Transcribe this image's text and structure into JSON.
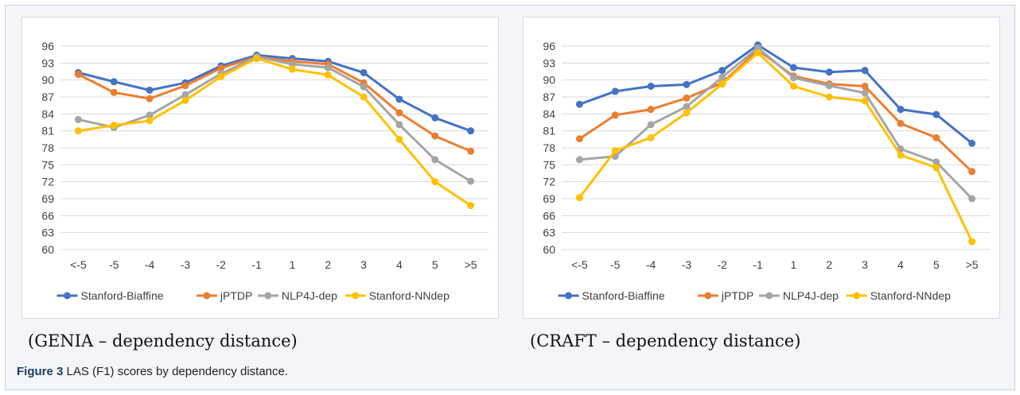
{
  "figure": {
    "label": "Figure 3",
    "caption_text": "LAS (F1) scores by dependency distance."
  },
  "colors": {
    "Stanford-Biaffine": "#4472c4",
    "jPTDP": "#ed7d31",
    "NLP4J-dep": "#a5a5a5",
    "Stanford-NNdep": "#ffc000"
  },
  "chart_data": [
    {
      "type": "line",
      "subcaption": "(GENIA – dependency distance)",
      "categories": [
        "<-5",
        "-5",
        "-4",
        "-3",
        "-2",
        "-1",
        "1",
        "2",
        "3",
        "4",
        "5",
        ">5"
      ],
      "ylim": [
        60,
        96
      ],
      "yticks": [
        "60",
        "63",
        "66",
        "69",
        "72",
        "75",
        "78",
        "81",
        "84",
        "87",
        "90",
        "93",
        "96"
      ],
      "grid": true,
      "legend_position": "bottom",
      "series": [
        {
          "name": "Stanford-Biaffine",
          "values": [
            91.3,
            89.7,
            88.2,
            89.5,
            92.5,
            94.4,
            93.8,
            93.3,
            91.3,
            86.6,
            83.3,
            81.0
          ]
        },
        {
          "name": "jPTDP",
          "values": [
            91.0,
            87.8,
            86.7,
            89.0,
            92.1,
            94.1,
            93.3,
            92.8,
            89.5,
            84.2,
            80.1,
            77.4
          ]
        },
        {
          "name": "NLP4J-dep",
          "values": [
            83.0,
            81.6,
            83.8,
            87.4,
            91.1,
            94.1,
            92.8,
            92.2,
            88.8,
            82.1,
            75.9,
            72.1
          ]
        },
        {
          "name": "Stanford-NNdep",
          "values": [
            81.0,
            82.0,
            82.8,
            86.4,
            90.6,
            93.8,
            91.9,
            90.9,
            87.0,
            79.5,
            72.0,
            67.8
          ]
        }
      ]
    },
    {
      "type": "line",
      "subcaption": "(CRAFT – dependency distance)",
      "categories": [
        "<-5",
        "-5",
        "-4",
        "-3",
        "-2",
        "-1",
        "1",
        "2",
        "3",
        "4",
        "5",
        ">5"
      ],
      "ylim": [
        60,
        96
      ],
      "yticks": [
        "60",
        "63",
        "66",
        "69",
        "72",
        "75",
        "78",
        "81",
        "84",
        "87",
        "90",
        "93",
        "96"
      ],
      "grid": true,
      "legend_position": "bottom",
      "series": [
        {
          "name": "Stanford-Biaffine",
          "values": [
            85.7,
            88.0,
            88.9,
            89.2,
            91.7,
            96.2,
            92.2,
            91.4,
            91.7,
            84.8,
            83.9,
            78.8
          ]
        },
        {
          "name": "jPTDP",
          "values": [
            79.6,
            83.8,
            84.8,
            86.8,
            89.5,
            95.3,
            90.7,
            89.3,
            88.9,
            82.3,
            79.8,
            73.8
          ]
        },
        {
          "name": "NLP4J-dep",
          "values": [
            75.9,
            76.5,
            82.1,
            85.3,
            90.5,
            95.7,
            90.4,
            89.0,
            87.7,
            77.8,
            75.5,
            69.0
          ]
        },
        {
          "name": "Stanford-NNdep",
          "values": [
            69.2,
            77.5,
            79.8,
            84.2,
            89.3,
            94.8,
            88.9,
            87.0,
            86.3,
            76.7,
            74.5,
            61.4
          ]
        }
      ]
    }
  ]
}
